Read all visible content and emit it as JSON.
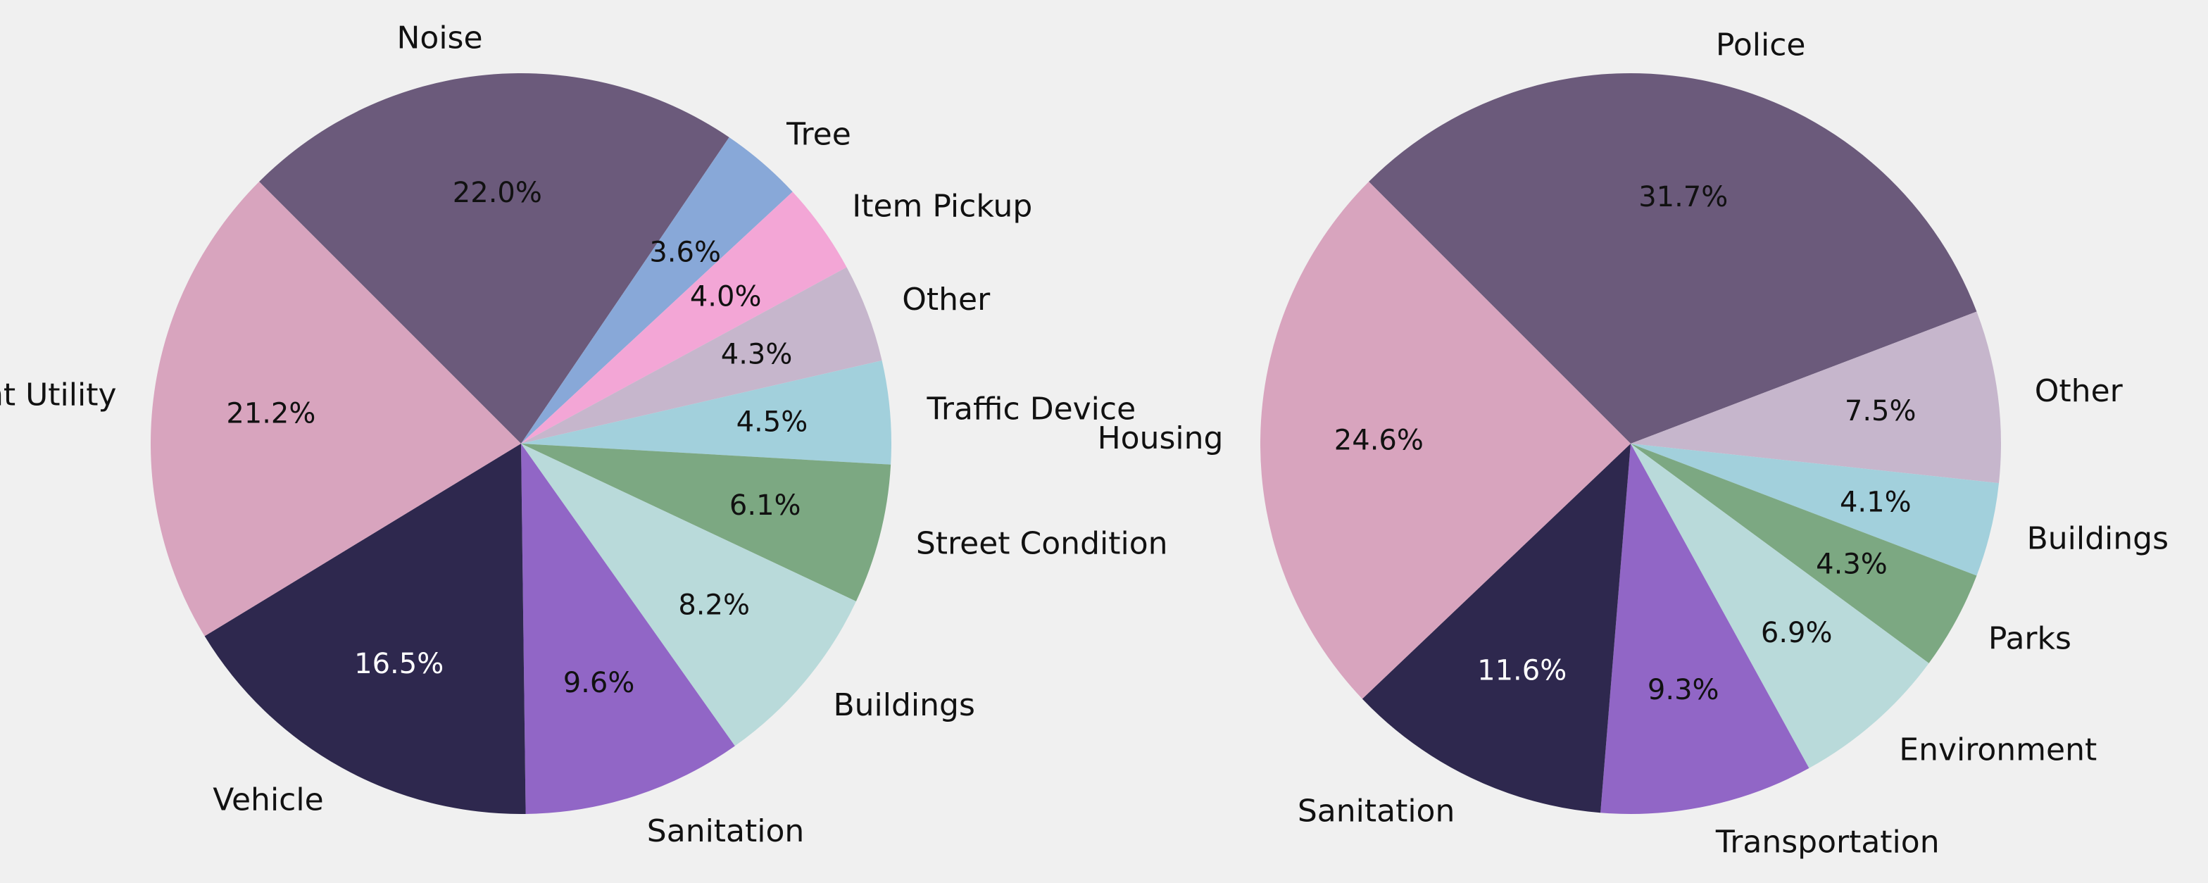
{
  "chart_data": [
    {
      "type": "pie",
      "title": "",
      "start_angle_deg": 135,
      "direction": "clockwise",
      "slices": [
        {
          "label": "Noise",
          "value": 22.0,
          "pct_text": "22.0%",
          "color": "#6b5a7b",
          "pct_text_color": "#111111"
        },
        {
          "label": "Tree",
          "value": 3.6,
          "pct_text": "3.6%",
          "color": "#88a8d8",
          "pct_text_color": "#111111"
        },
        {
          "label": "Item Pickup",
          "value": 4.0,
          "pct_text": "4.0%",
          "color": "#f3a6d6",
          "pct_text_color": "#111111"
        },
        {
          "label": "Other",
          "value": 4.3,
          "pct_text": "4.3%",
          "color": "#c6b6cc",
          "pct_text_color": "#111111"
        },
        {
          "label": "Traffic Device",
          "value": 4.5,
          "pct_text": "4.5%",
          "color": "#a2d0dc",
          "pct_text_color": "#111111"
        },
        {
          "label": "Street Condition",
          "value": 6.1,
          "pct_text": "6.1%",
          "color": "#7ca882",
          "pct_text_color": "#111111"
        },
        {
          "label": "Buildings",
          "value": 8.2,
          "pct_text": "8.2%",
          "color": "#b9dada",
          "pct_text_color": "#111111"
        },
        {
          "label": "Sanitation",
          "value": 9.6,
          "pct_text": "9.6%",
          "color": "#9166c6",
          "pct_text_color": "#111111"
        },
        {
          "label": "Vehicle",
          "value": 16.5,
          "pct_text": "16.5%",
          "color": "#2e284e",
          "pct_text_color": "#ffffff"
        },
        {
          "label": "Resident Utility",
          "value": 21.2,
          "pct_text": "21.2%",
          "color": "#d8a4be",
          "pct_text_color": "#111111"
        }
      ]
    },
    {
      "type": "pie",
      "title": "",
      "start_angle_deg": 135,
      "direction": "clockwise",
      "slices": [
        {
          "label": "Police",
          "value": 31.7,
          "pct_text": "31.7%",
          "color": "#6b5a7b",
          "pct_text_color": "#111111"
        },
        {
          "label": "Other",
          "value": 7.5,
          "pct_text": "7.5%",
          "color": "#c6b6cc",
          "pct_text_color": "#111111"
        },
        {
          "label": "Buildings",
          "value": 4.1,
          "pct_text": "4.1%",
          "color": "#a2d0dc",
          "pct_text_color": "#111111"
        },
        {
          "label": "Parks",
          "value": 4.3,
          "pct_text": "4.3%",
          "color": "#7ca882",
          "pct_text_color": "#111111"
        },
        {
          "label": "Environment",
          "value": 6.9,
          "pct_text": "6.9%",
          "color": "#b9dada",
          "pct_text_color": "#111111"
        },
        {
          "label": "Transportation",
          "value": 9.3,
          "pct_text": "9.3%",
          "color": "#9166c6",
          "pct_text_color": "#111111"
        },
        {
          "label": "Sanitation",
          "value": 11.6,
          "pct_text": "11.6%",
          "color": "#2e284e",
          "pct_text_color": "#ffffff"
        },
        {
          "label": "Housing",
          "value": 24.6,
          "pct_text": "24.6%",
          "color": "#d8a4be",
          "pct_text_color": "#111111"
        }
      ]
    }
  ]
}
